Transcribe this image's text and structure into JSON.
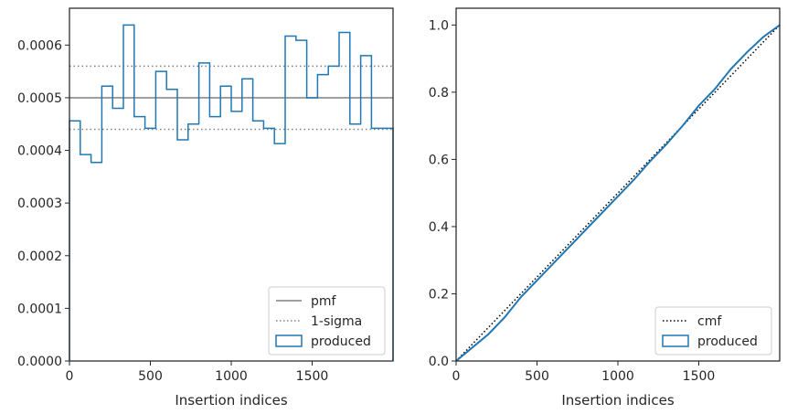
{
  "chart_data": [
    {
      "type": "step-histogram",
      "xlabel": "Insertion indices",
      "ylabel": "",
      "xlim": [
        0,
        2000
      ],
      "ylim": [
        0,
        0.00067
      ],
      "xticks": [
        0,
        500,
        1000,
        1500
      ],
      "yticks": [
        0,
        0.0001,
        0.0002,
        0.0003,
        0.0004,
        0.0005,
        0.0006
      ],
      "ytick_labels": [
        "0.0000",
        "0.0001",
        "0.0002",
        "0.0003",
        "0.0004",
        "0.0005",
        "0.0006"
      ],
      "bin_width": 66.67,
      "values": [
        0.000456,
        0.000392,
        0.000377,
        0.000522,
        0.00048,
        0.000638,
        0.000464,
        0.000442,
        0.00055,
        0.000516,
        0.00042,
        0.00045,
        0.000566,
        0.000464,
        0.000522,
        0.000474,
        0.000536,
        0.000456,
        0.000442,
        0.000413,
        0.000617,
        0.000609,
        0.0005,
        0.000544,
        0.00056,
        0.000624,
        0.00045,
        0.00058,
        0.000442,
        0.000442
      ],
      "pmf": 0.0005,
      "sigma_band": [
        0.00044,
        0.00056
      ],
      "legend": {
        "placement": "lower right",
        "entries": [
          {
            "label": "pmf",
            "style": "solid",
            "color": "#808080"
          },
          {
            "label": "1-sigma",
            "style": "dotted",
            "color": "#808080"
          },
          {
            "label": "produced",
            "style": "box",
            "color": "#1f77b4"
          }
        ]
      }
    },
    {
      "type": "line",
      "xlabel": "Insertion indices",
      "ylabel": "",
      "xlim": [
        0,
        2000
      ],
      "ylim": [
        0,
        1.05
      ],
      "xticks": [
        0,
        500,
        1000,
        1500
      ],
      "yticks": [
        0,
        0.2,
        0.4,
        0.6,
        0.8,
        1.0
      ],
      "ytick_labels": [
        "0.0",
        "0.2",
        "0.4",
        "0.6",
        "0.8",
        "1.0"
      ],
      "series": [
        {
          "name": "cmf",
          "style": "dotted",
          "color": "#000000",
          "x": [
            0,
            2000
          ],
          "y": [
            0,
            1.0
          ]
        },
        {
          "name": "produced",
          "style": "solid",
          "color": "#1f77b4",
          "x": [
            0,
            100,
            200,
            300,
            400,
            500,
            600,
            700,
            800,
            900,
            1000,
            1100,
            1200,
            1300,
            1400,
            1500,
            1600,
            1700,
            1800,
            1900,
            2000
          ],
          "y": [
            0,
            0.04,
            0.08,
            0.13,
            0.19,
            0.24,
            0.29,
            0.34,
            0.39,
            0.44,
            0.49,
            0.54,
            0.595,
            0.645,
            0.7,
            0.76,
            0.81,
            0.87,
            0.92,
            0.965,
            1.0
          ]
        }
      ],
      "legend": {
        "placement": "lower right",
        "entries": [
          {
            "label": "cmf",
            "style": "dotted",
            "color": "#000000"
          },
          {
            "label": "produced",
            "style": "box",
            "color": "#1f77b4"
          }
        ]
      }
    }
  ]
}
